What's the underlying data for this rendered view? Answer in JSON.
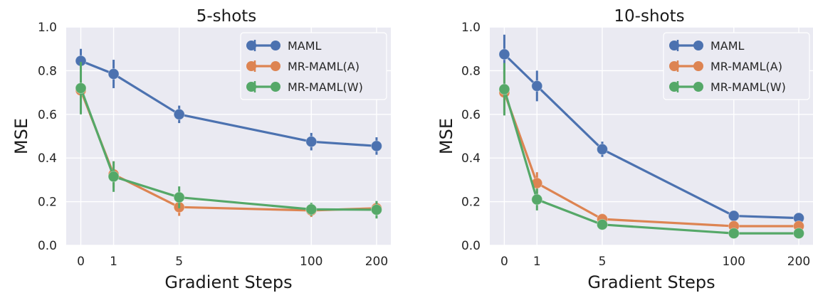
{
  "chart_data": [
    {
      "type": "line",
      "title": "5-shots",
      "xlabel": "Gradient Steps",
      "ylabel": "MSE",
      "categories": [
        "0",
        "1",
        "5",
        "100",
        "200"
      ],
      "ylim": [
        0.0,
        1.0
      ],
      "yticks": [
        "0.0",
        "0.2",
        "0.4",
        "0.6",
        "0.8",
        "1.0"
      ],
      "grid": true,
      "legend_position": "top-right",
      "series": [
        {
          "name": "MAML",
          "color": "#4c72b0",
          "values": [
            0.845,
            0.785,
            0.6,
            0.475,
            0.455
          ],
          "errors": [
            0.055,
            0.065,
            0.04,
            0.04,
            0.04
          ]
        },
        {
          "name": "MR-MAML(A)",
          "color": "#dd8452",
          "values": [
            0.71,
            0.325,
            0.175,
            0.16,
            0.17
          ],
          "errors": [
            0.1,
            0.06,
            0.04,
            0.03,
            0.03
          ]
        },
        {
          "name": "MR-MAML(W)",
          "color": "#55a868",
          "values": [
            0.72,
            0.315,
            0.22,
            0.165,
            0.163
          ],
          "errors": [
            0.12,
            0.07,
            0.05,
            0.03,
            0.04
          ]
        }
      ]
    },
    {
      "type": "line",
      "title": "10-shots",
      "xlabel": "Gradient Steps",
      "ylabel": "MSE",
      "categories": [
        "0",
        "1",
        "5",
        "100",
        "200"
      ],
      "ylim": [
        0.0,
        1.0
      ],
      "yticks": [
        "0.0",
        "0.2",
        "0.4",
        "0.6",
        "0.8",
        "1.0"
      ],
      "grid": true,
      "legend_position": "top-right",
      "series": [
        {
          "name": "MAML",
          "color": "#4c72b0",
          "values": [
            0.875,
            0.73,
            0.44,
            0.135,
            0.125
          ],
          "errors": [
            0.09,
            0.07,
            0.035,
            0.02,
            0.015
          ]
        },
        {
          "name": "MR-MAML(A)",
          "color": "#dd8452",
          "values": [
            0.7,
            0.285,
            0.12,
            0.088,
            0.088
          ],
          "errors": [
            0.1,
            0.05,
            0.025,
            0.015,
            0.01
          ]
        },
        {
          "name": "MR-MAML(W)",
          "color": "#55a868",
          "values": [
            0.715,
            0.21,
            0.095,
            0.055,
            0.055
          ],
          "errors": [
            0.12,
            0.05,
            0.02,
            0.01,
            0.01
          ]
        }
      ]
    }
  ]
}
